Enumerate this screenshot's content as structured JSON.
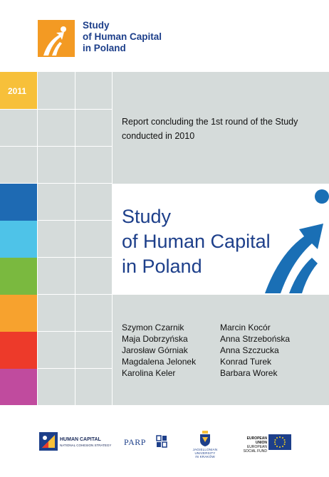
{
  "header": {
    "logo_line1": "Study",
    "logo_line2": "of Human Capital",
    "logo_line3": "in Poland"
  },
  "year": "2011",
  "report_line1": "Report concluding the 1st round of the Study",
  "report_line2": "conducted in 2010",
  "title": {
    "line1": "Study",
    "line2": "of Human Capital",
    "line3": "in Poland"
  },
  "authors_left": [
    "Szymon Czarnik",
    "Maja Dobrzyńska",
    "Jarosław Górniak",
    "Magdalena Jelonek",
    "Karolina Keler"
  ],
  "authors_right": [
    "Marcin Kocór",
    "Anna Strzebońska",
    "Anna Szczucka",
    "Konrad Turek",
    "Barbara Worek"
  ],
  "footer": {
    "hc_line1": "HUMAN CAPITAL",
    "hc_line2": "NATIONAL COHESION STRATEGY",
    "parp": "PARP",
    "uj_line1": "JAGIELLONIAN UNIVERSITY",
    "uj_line2": "IN KRAKÓW",
    "eu_line1": "EUROPEAN UNION",
    "eu_line2": "EUROPEAN",
    "eu_line3": "SOCIAL FUND"
  },
  "colors": {
    "brand_blue": "#1d3f8a",
    "arrow_blue": "#1a6fb5",
    "orange": "#f39a23",
    "yellow": "#f7c03a",
    "grid_grey": "#d5dbda",
    "swatches": [
      "#f7c03a",
      "#1e6ab3",
      "#4ec3e8",
      "#7ab93f",
      "#f7a22e",
      "#ed3a2a",
      "#c04b9e"
    ]
  }
}
